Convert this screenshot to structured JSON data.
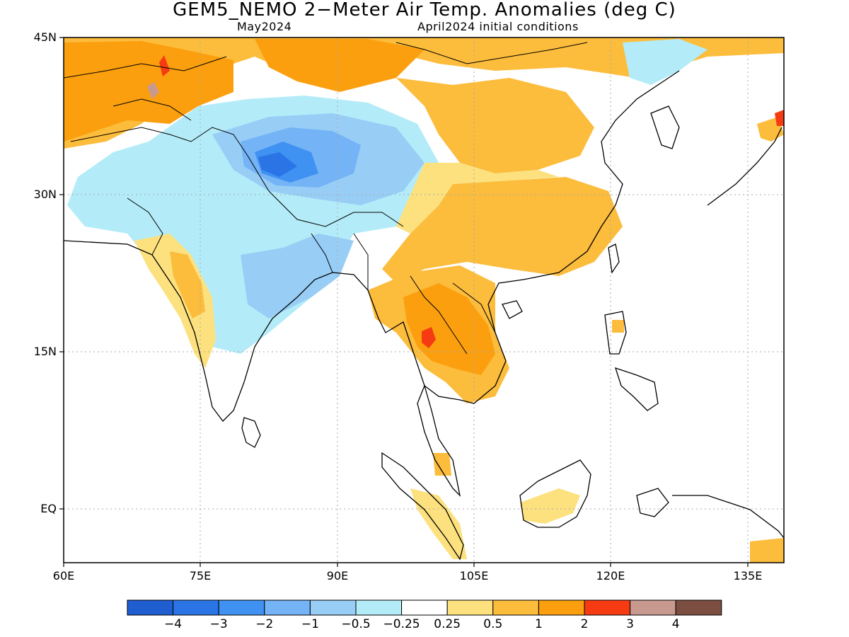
{
  "title": "GEM5_NEMO 2−Meter Air Temp. Anomalies (deg C)",
  "valid_month": "May2024",
  "init": "April2024 initial conditions",
  "lat_labels": [
    "45N",
    "30N",
    "15N",
    "EQ"
  ],
  "lon_labels": [
    "60E",
    "75E",
    "90E",
    "105E",
    "120E",
    "135E"
  ],
  "colorbar": {
    "colors": [
      "#1f5ed1",
      "#2a74e6",
      "#3f92f2",
      "#74b3f5",
      "#98cdf6",
      "#b3ecf8",
      "#ffffff",
      "#fce17e",
      "#fcbc3c",
      "#fb9f0f",
      "#f63b12",
      "#c8998f",
      "#7c4e41"
    ],
    "labels": [
      "−4",
      "−3",
      "−2",
      "−1",
      "−0.5",
      "−0.25",
      "0.25",
      "0.5",
      "1",
      "2",
      "3",
      "4"
    ]
  }
}
